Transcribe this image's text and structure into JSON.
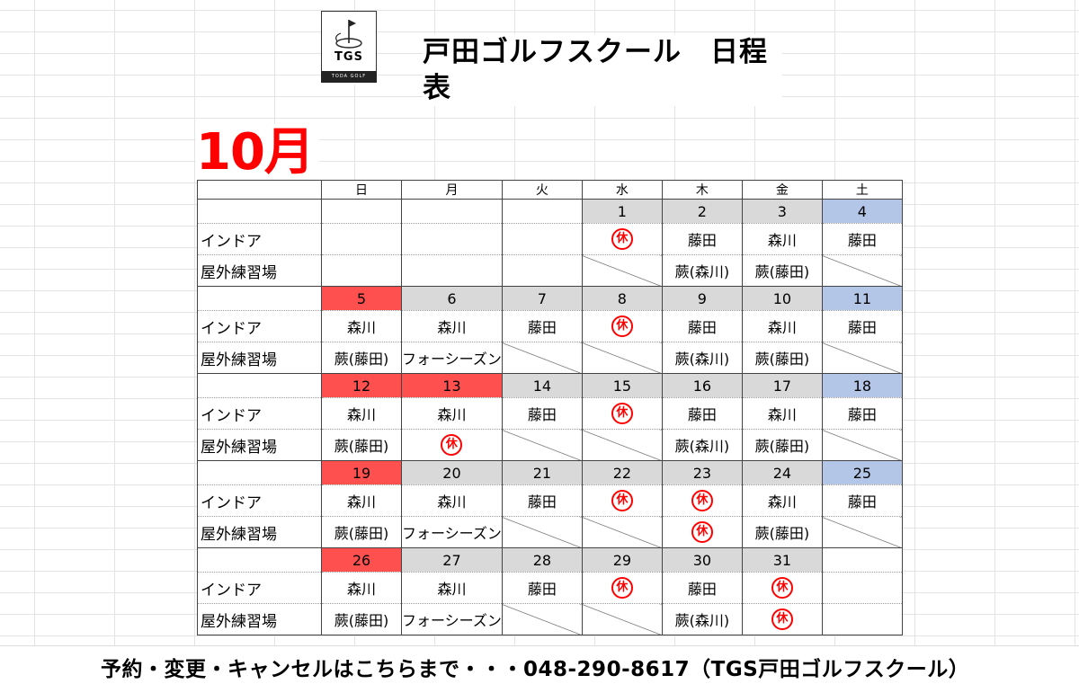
{
  "logo": {
    "mark": "TGS",
    "band": "TODA GOLF SCHOOL"
  },
  "title": "戸田ゴルフスクール　日程表",
  "month": "10月",
  "weekdays": [
    "日",
    "月",
    "火",
    "水",
    "木",
    "金",
    "土"
  ],
  "row_labels": {
    "indoor": "インドア",
    "outdoor": "屋外練習場"
  },
  "closed_mark": "休",
  "weeks": [
    {
      "dates": [
        "",
        "",
        "",
        "1",
        "2",
        "3",
        "4"
      ],
      "indoor": [
        "",
        "",
        "",
        "休",
        "藤田",
        "森川",
        "藤田"
      ],
      "outdoor": [
        "",
        "",
        "",
        "/",
        "蕨(森川)",
        "蕨(藤田)",
        "/"
      ]
    },
    {
      "dates": [
        "5",
        "6",
        "7",
        "8",
        "9",
        "10",
        "11"
      ],
      "indoor": [
        "森川",
        "森川",
        "藤田",
        "休",
        "藤田",
        "森川",
        "藤田"
      ],
      "outdoor": [
        "蕨(藤田)",
        "フォーシーズン",
        "/",
        "/",
        "蕨(森川)",
        "蕨(藤田)",
        "/"
      ]
    },
    {
      "dates": [
        "12",
        "13",
        "14",
        "15",
        "16",
        "17",
        "18"
      ],
      "indoor": [
        "森川",
        "森川",
        "藤田",
        "休",
        "藤田",
        "森川",
        "藤田"
      ],
      "outdoor": [
        "蕨(藤田)",
        "休",
        "/",
        "/",
        "蕨(森川)",
        "蕨(藤田)",
        "/"
      ]
    },
    {
      "dates": [
        "19",
        "20",
        "21",
        "22",
        "23",
        "24",
        "25"
      ],
      "indoor": [
        "森川",
        "森川",
        "藤田",
        "休",
        "休",
        "森川",
        "藤田"
      ],
      "outdoor": [
        "蕨(藤田)",
        "フォーシーズン",
        "/",
        "/",
        "休",
        "蕨(藤田)",
        "/"
      ]
    },
    {
      "dates": [
        "26",
        "27",
        "28",
        "29",
        "30",
        "31",
        ""
      ],
      "indoor": [
        "森川",
        "森川",
        "藤田",
        "休",
        "藤田",
        "休",
        ""
      ],
      "outdoor": [
        "蕨(藤田)",
        "フォーシーズン",
        "/",
        "/",
        "蕨(森川)",
        "休",
        ""
      ]
    }
  ],
  "holidays_red": [
    "5",
    "12",
    "13",
    "19",
    "26"
  ],
  "colors": {
    "holiday": "#ff5050",
    "saturday": "#b4c6e7",
    "weekday": "#d9d9d9",
    "accent": "#ff0000"
  },
  "footer": "予約・変更・キャンセルはこちらまで・・・048-290-8617（TGS戸田ゴルフスクール）"
}
